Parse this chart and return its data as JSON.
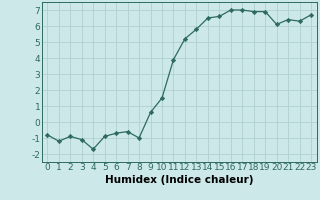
{
  "xlabel": "Humidex (Indice chaleur)",
  "x": [
    0,
    1,
    2,
    3,
    4,
    5,
    6,
    7,
    8,
    9,
    10,
    11,
    12,
    13,
    14,
    15,
    16,
    17,
    18,
    19,
    20,
    21,
    22,
    23
  ],
  "y": [
    -0.8,
    -1.2,
    -0.9,
    -1.1,
    -1.7,
    -0.9,
    -0.7,
    -0.6,
    -1.0,
    0.6,
    1.5,
    3.9,
    5.2,
    5.8,
    6.5,
    6.6,
    7.0,
    7.0,
    6.9,
    6.9,
    6.1,
    6.4,
    6.3,
    6.7
  ],
  "ylim": [
    -2.5,
    7.5
  ],
  "xlim": [
    -0.5,
    23.5
  ],
  "yticks": [
    -2,
    -1,
    0,
    1,
    2,
    3,
    4,
    5,
    6,
    7
  ],
  "xticks": [
    0,
    1,
    2,
    3,
    4,
    5,
    6,
    7,
    8,
    9,
    10,
    11,
    12,
    13,
    14,
    15,
    16,
    17,
    18,
    19,
    20,
    21,
    22,
    23
  ],
  "line_color": "#2e6b5e",
  "marker": "D",
  "marker_size": 2.2,
  "bg_color": "#cce8e8",
  "grid_color": "#b0d0d0",
  "tick_label_fontsize": 6.5,
  "xlabel_fontsize": 7.5
}
